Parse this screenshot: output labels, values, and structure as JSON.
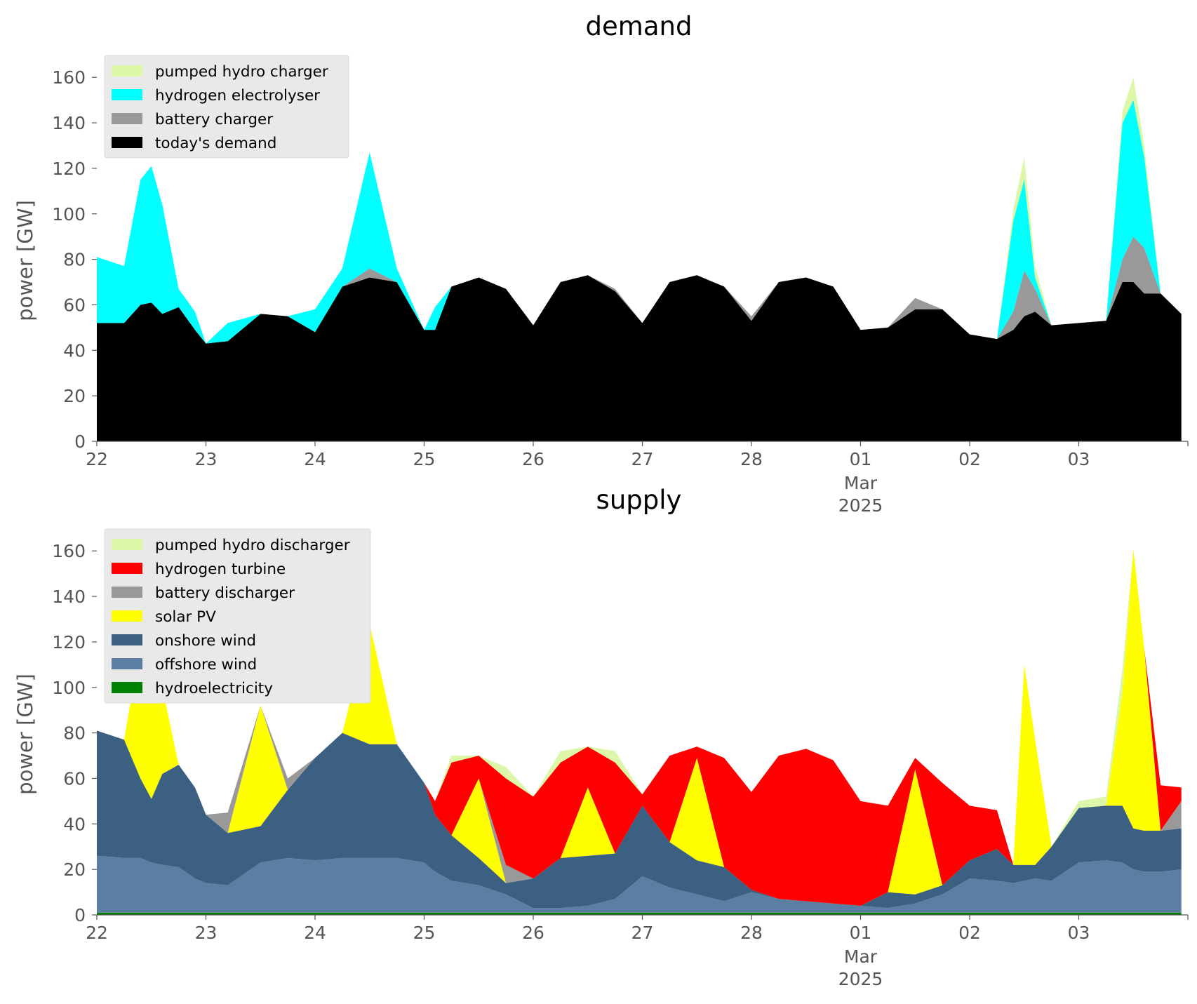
{
  "chart_data": [
    {
      "type": "area",
      "stacked": true,
      "title": "demand",
      "ylabel": "power [GW]",
      "ylim": [
        0,
        165
      ],
      "yticks": [
        0,
        20,
        40,
        60,
        80,
        100,
        120,
        140,
        160
      ],
      "x_unit": "day",
      "x_start": "2025-02-22",
      "x_end": "2025-03-04",
      "xtick_labels": [
        {
          "label": "22",
          "day": 0
        },
        {
          "label": "23",
          "day": 1
        },
        {
          "label": "24",
          "day": 2
        },
        {
          "label": "25",
          "day": 3
        },
        {
          "label": "26",
          "day": 4
        },
        {
          "label": "27",
          "day": 5
        },
        {
          "label": "28",
          "day": 6
        },
        {
          "label": "01",
          "day": 7,
          "sub": [
            "Mar",
            "2025"
          ]
        },
        {
          "label": "02",
          "day": 8
        },
        {
          "label": "03",
          "day": 9
        }
      ],
      "grid": false,
      "legend_position": "top-left",
      "x": [
        0,
        0.25,
        0.4,
        0.5,
        0.6,
        0.75,
        0.9,
        1.0,
        1.2,
        1.5,
        1.75,
        2.0,
        2.25,
        2.5,
        2.75,
        3.0,
        3.1,
        3.25,
        3.5,
        3.75,
        4.0,
        4.25,
        4.5,
        4.75,
        5.0,
        5.25,
        5.5,
        5.75,
        6.0,
        6.25,
        6.5,
        6.75,
        7.0,
        7.25,
        7.5,
        7.75,
        8.0,
        8.25,
        8.4,
        8.5,
        8.6,
        8.75,
        9.0,
        9.25,
        9.4,
        9.5,
        9.6,
        9.75,
        9.94
      ],
      "series": [
        {
          "name": "today's demand",
          "color": "#000000",
          "values": [
            52,
            52,
            60,
            61,
            56,
            59,
            49,
            43,
            44,
            56,
            55,
            48,
            68,
            72,
            70,
            49,
            49,
            68,
            72,
            67,
            51,
            70,
            73,
            66,
            52,
            70,
            73,
            68,
            53,
            70,
            72,
            68,
            49,
            50,
            58,
            58,
            47,
            45,
            49,
            55,
            57,
            51,
            52,
            53,
            70,
            70,
            65,
            65,
            56
          ]
        },
        {
          "name": "battery charger",
          "color": "#999999",
          "values": [
            0,
            0,
            0,
            0,
            0,
            0,
            0,
            0,
            0,
            0,
            0,
            0,
            0,
            4,
            0,
            0,
            0,
            0,
            0,
            0,
            0,
            0,
            0,
            1,
            0,
            0,
            0,
            0,
            2,
            0,
            0,
            0,
            0,
            0,
            5,
            0,
            0,
            0,
            8,
            20,
            10,
            0,
            0,
            0,
            10,
            20,
            20,
            0,
            0
          ]
        },
        {
          "name": "hydrogen electrolyser",
          "color": "#00ffff",
          "values": [
            29,
            25,
            55,
            60,
            48,
            8,
            8,
            0,
            8,
            0,
            0,
            10,
            8,
            51,
            6,
            0,
            10,
            0,
            0,
            0,
            0,
            0,
            0,
            0,
            0,
            0,
            0,
            0,
            0,
            0,
            0,
            0,
            0,
            0,
            0,
            0,
            0,
            0,
            40,
            40,
            5,
            0,
            0,
            0,
            60,
            60,
            40,
            0,
            0
          ]
        },
        {
          "name": "pumped hydro charger",
          "color": "#ddf7a8",
          "values": [
            0,
            0,
            0,
            0,
            0,
            0,
            0,
            0,
            0,
            0,
            0,
            0,
            0,
            0,
            0,
            0,
            0,
            0,
            0,
            0,
            0,
            0,
            0,
            0,
            0,
            0,
            0,
            0,
            0,
            0,
            0,
            0,
            0,
            0,
            0,
            0,
            0,
            0,
            5,
            10,
            5,
            0,
            0,
            0,
            5,
            10,
            5,
            0,
            0
          ]
        }
      ],
      "legend": [
        "pumped hydro charger",
        "hydrogen electrolyser",
        "battery charger",
        "today's demand"
      ]
    },
    {
      "type": "area",
      "stacked": true,
      "title": "supply",
      "ylabel": "power [GW]",
      "ylim": [
        0,
        165
      ],
      "yticks": [
        0,
        20,
        40,
        60,
        80,
        100,
        120,
        140,
        160
      ],
      "x_unit": "day",
      "x_start": "2025-02-22",
      "x_end": "2025-03-04",
      "xtick_labels": [
        {
          "label": "22",
          "day": 0
        },
        {
          "label": "23",
          "day": 1
        },
        {
          "label": "24",
          "day": 2
        },
        {
          "label": "25",
          "day": 3
        },
        {
          "label": "26",
          "day": 4
        },
        {
          "label": "27",
          "day": 5
        },
        {
          "label": "28",
          "day": 6
        },
        {
          "label": "01",
          "day": 7,
          "sub": [
            "Mar",
            "2025"
          ]
        },
        {
          "label": "02",
          "day": 8
        },
        {
          "label": "03",
          "day": 9
        }
      ],
      "grid": false,
      "legend_position": "top-left",
      "x": [
        0,
        0.25,
        0.4,
        0.5,
        0.6,
        0.75,
        0.9,
        1.0,
        1.2,
        1.5,
        1.75,
        2.0,
        2.25,
        2.5,
        2.75,
        3.0,
        3.1,
        3.25,
        3.5,
        3.75,
        4.0,
        4.25,
        4.5,
        4.75,
        5.0,
        5.25,
        5.5,
        5.75,
        6.0,
        6.25,
        6.5,
        6.75,
        7.0,
        7.25,
        7.5,
        7.75,
        8.0,
        8.25,
        8.4,
        8.5,
        8.6,
        8.75,
        9.0,
        9.25,
        9.4,
        9.5,
        9.6,
        9.75,
        9.94
      ],
      "series": [
        {
          "name": "hydroelectricity",
          "color": "#008000",
          "values": [
            1,
            1,
            1,
            1,
            1,
            1,
            1,
            1,
            1,
            1,
            1,
            1,
            1,
            1,
            1,
            1,
            1,
            1,
            1,
            1,
            1,
            1,
            1,
            1,
            1,
            1,
            1,
            1,
            1,
            1,
            1,
            1,
            1,
            1,
            1,
            1,
            1,
            1,
            1,
            1,
            1,
            1,
            1,
            1,
            1,
            1,
            1,
            1,
            1
          ]
        },
        {
          "name": "offshore wind",
          "color": "#5b7fa3",
          "values": [
            25,
            24,
            24,
            22,
            21,
            20,
            15,
            13,
            12,
            22,
            24,
            23,
            24,
            24,
            24,
            22,
            18,
            14,
            12,
            8,
            2,
            2,
            3,
            6,
            16,
            11,
            8,
            5,
            9,
            6,
            5,
            4,
            3,
            2,
            4,
            8,
            15,
            14,
            13,
            14,
            15,
            14,
            22,
            23,
            22,
            19,
            18,
            18,
            19
          ]
        },
        {
          "name": "onshore wind",
          "color": "#3b6081",
          "values": [
            55,
            52,
            35,
            28,
            40,
            45,
            40,
            30,
            23,
            16,
            30,
            45,
            55,
            50,
            50,
            35,
            25,
            20,
            12,
            5,
            13,
            22,
            22,
            20,
            31,
            20,
            15,
            15,
            1,
            0,
            0,
            0,
            0,
            7,
            4,
            4,
            8,
            14,
            8,
            7,
            6,
            15,
            24,
            24,
            25,
            18,
            18,
            18,
            18
          ]
        },
        {
          "name": "solar PV",
          "color": "#ffff00",
          "values": [
            0,
            0,
            59,
            71,
            38,
            0,
            0,
            0,
            0,
            53,
            0,
            0,
            0,
            53,
            0,
            0,
            0,
            0,
            35,
            0,
            0,
            0,
            30,
            0,
            0,
            0,
            45,
            0,
            0,
            0,
            0,
            0,
            0,
            0,
            55,
            0,
            0,
            0,
            0,
            88,
            55,
            0,
            0,
            0,
            50,
            123,
            80,
            0,
            0
          ]
        },
        {
          "name": "battery discharger",
          "color": "#999999",
          "values": [
            0,
            0,
            0,
            0,
            0,
            0,
            0,
            0,
            9,
            0,
            5,
            0,
            0,
            0,
            0,
            0,
            0,
            0,
            0,
            8,
            0,
            0,
            0,
            0,
            0,
            0,
            0,
            0,
            0,
            0,
            0,
            0,
            0,
            0,
            0,
            0,
            0,
            0,
            0,
            0,
            0,
            0,
            0,
            0,
            0,
            0,
            0,
            0,
            12
          ]
        },
        {
          "name": "hydrogen turbine",
          "color": "#ff0000",
          "values": [
            0,
            0,
            0,
            0,
            0,
            0,
            0,
            0,
            0,
            0,
            0,
            0,
            0,
            0,
            0,
            0,
            6,
            32,
            10,
            38,
            36,
            42,
            18,
            40,
            5,
            38,
            5,
            48,
            43,
            63,
            67,
            63,
            46,
            38,
            5,
            45,
            24,
            17,
            0,
            0,
            0,
            0,
            0,
            0,
            0,
            0,
            0,
            20,
            6
          ]
        },
        {
          "name": "pumped hydro discharger",
          "color": "#ddf7a8",
          "values": [
            0,
            0,
            0,
            0,
            0,
            0,
            0,
            0,
            0,
            0,
            0,
            0,
            0,
            0,
            0,
            0,
            0,
            3,
            0,
            5,
            0,
            5,
            0,
            5,
            0,
            0,
            0,
            0,
            0,
            0,
            0,
            0,
            0,
            0,
            0,
            0,
            0,
            0,
            0,
            0,
            0,
            0,
            3,
            4,
            10,
            0,
            0,
            0,
            0
          ]
        }
      ],
      "legend": [
        "pumped hydro discharger",
        "hydrogen turbine",
        "battery discharger",
        "solar PV",
        "onshore wind",
        "offshore wind",
        "hydroelectricity"
      ]
    }
  ]
}
